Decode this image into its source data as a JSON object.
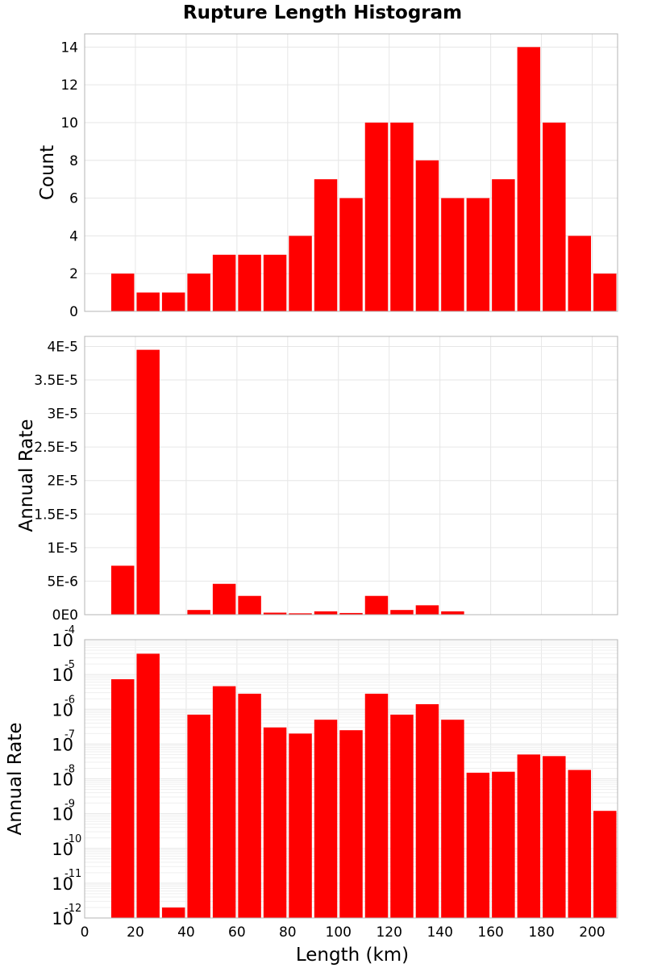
{
  "title": "Rupture Length Histogram",
  "chart_data": [
    {
      "type": "bar",
      "ylabel": "Count",
      "y_ticks": [
        "0",
        "2",
        "4",
        "6",
        "8",
        "10",
        "12",
        "14"
      ],
      "ylim": [
        0,
        14.7
      ],
      "x_bin_starts": [
        10,
        20,
        30,
        40,
        50,
        60,
        70,
        80,
        90,
        100,
        110,
        120,
        130,
        140,
        150,
        160,
        170,
        180,
        190,
        200
      ],
      "bin_width": 10,
      "values": [
        2,
        1,
        1,
        2,
        3,
        3,
        3,
        4,
        7,
        6,
        10,
        10,
        8,
        6,
        6,
        7,
        14,
        10,
        4,
        2
      ],
      "grid": true
    },
    {
      "type": "bar",
      "ylabel": "Annual Rate",
      "y_ticks": [
        "0E0",
        "5E-6",
        "1E-5",
        "1.5E-5",
        "2E-5",
        "2.5E-5",
        "3E-5",
        "3.5E-5",
        "4E-5"
      ],
      "ylim": [
        0,
        4.15e-05
      ],
      "x_bin_starts": [
        10,
        20,
        30,
        40,
        50,
        60,
        70,
        80,
        90,
        100,
        110,
        120,
        130,
        140,
        150,
        160,
        170,
        180,
        190,
        200
      ],
      "bin_width": 10,
      "values": [
        7.3e-06,
        3.95e-05,
        2e-12,
        7e-07,
        4.6e-06,
        2.8e-06,
        3e-07,
        2e-07,
        5e-07,
        2.5e-07,
        2.8e-06,
        7e-07,
        1.4e-06,
        5e-07,
        1.5e-08,
        1.6e-08,
        5e-08,
        4.5e-08,
        1.8e-08,
        1.2e-09
      ],
      "grid": true
    },
    {
      "type": "bar",
      "ylabel": "Annual Rate",
      "y_scale": "log",
      "y_ticks": [
        {
          "base": "10",
          "exp": "-12"
        },
        {
          "base": "10",
          "exp": "-11"
        },
        {
          "base": "10",
          "exp": "-10"
        },
        {
          "base": "10",
          "exp": "-9"
        },
        {
          "base": "10",
          "exp": "-8"
        },
        {
          "base": "10",
          "exp": "-7"
        },
        {
          "base": "10",
          "exp": "-6"
        },
        {
          "base": "10",
          "exp": "-5"
        },
        {
          "base": "10",
          "exp": "-4"
        }
      ],
      "ylim": [
        1e-12,
        0.0001
      ],
      "x_bin_starts": [
        10,
        20,
        30,
        40,
        50,
        60,
        70,
        80,
        90,
        100,
        110,
        120,
        130,
        140,
        150,
        160,
        170,
        180,
        190,
        200
      ],
      "bin_width": 10,
      "values": [
        7.3e-06,
        3.95e-05,
        2e-12,
        7e-07,
        4.6e-06,
        2.8e-06,
        3e-07,
        2e-07,
        5e-07,
        2.5e-07,
        2.8e-06,
        7e-07,
        1.4e-06,
        5e-07,
        1.5e-08,
        1.6e-08,
        5e-08,
        4.5e-08,
        1.8e-08,
        1.2e-09
      ],
      "grid": true
    }
  ],
  "x_axis": {
    "label": "Length (km)",
    "ticks": [
      "0",
      "20",
      "40",
      "60",
      "80",
      "100",
      "120",
      "140",
      "160",
      "180",
      "200"
    ],
    "xlim": [
      0,
      210
    ]
  },
  "colors": {
    "bar": "#ff0000",
    "grid": "#e6e6e6",
    "frame": "#b4b4b4"
  }
}
